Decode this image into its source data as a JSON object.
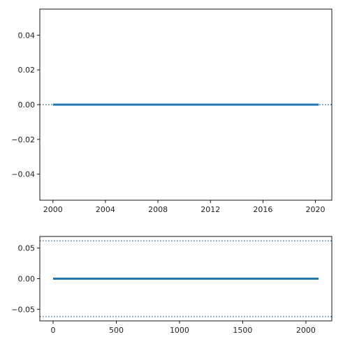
{
  "chart_data": [
    {
      "type": "line",
      "title": "",
      "xlabel": "",
      "ylabel": "",
      "x_axis_type": "date",
      "xlim": [
        "1999-01-01",
        "2021-04-01"
      ],
      "ylim": [
        -0.055,
        0.055
      ],
      "xticks": [
        {
          "value": "2000-01-01",
          "label": "2000"
        },
        {
          "value": "2004-01-01",
          "label": "2004"
        },
        {
          "value": "2008-01-01",
          "label": "2008"
        },
        {
          "value": "2012-01-01",
          "label": "2012"
        },
        {
          "value": "2016-01-01",
          "label": "2016"
        },
        {
          "value": "2020-01-01",
          "label": "2020"
        }
      ],
      "yticks": [
        {
          "value": 0.04,
          "label": "0.04"
        },
        {
          "value": 0.02,
          "label": "0.02"
        },
        {
          "value": 0.0,
          "label": "0.00"
        },
        {
          "value": -0.02,
          "label": "−0.02"
        },
        {
          "value": -0.04,
          "label": "−0.04"
        }
      ],
      "series": [
        {
          "x": [
            "2000-01-01",
            "2020-04-01"
          ],
          "y": [
            0.0,
            0.0
          ],
          "style": "solid",
          "color": "#1f77b4"
        }
      ],
      "reference_lines": [
        {
          "orientation": "horizontal",
          "y": 0.0,
          "style": "dotted",
          "color": "#1f77b4"
        }
      ],
      "grid": false,
      "legend": "none"
    },
    {
      "type": "line",
      "title": "",
      "xlabel": "",
      "ylabel": "",
      "xlim": [
        -105,
        2205
      ],
      "ylim": [
        -0.069,
        0.069
      ],
      "xticks": [
        {
          "value": 0,
          "label": "0"
        },
        {
          "value": 500,
          "label": "500"
        },
        {
          "value": 1000,
          "label": "1000"
        },
        {
          "value": 1500,
          "label": "1500"
        },
        {
          "value": 2000,
          "label": "2000"
        }
      ],
      "yticks": [
        {
          "value": 0.05,
          "label": "0.05"
        },
        {
          "value": 0.0,
          "label": "0.00"
        },
        {
          "value": -0.05,
          "label": "−0.05"
        }
      ],
      "series": [
        {
          "x": [
            0,
            2100
          ],
          "y": [
            0.0,
            0.0
          ],
          "style": "solid",
          "color": "#1f77b4"
        }
      ],
      "reference_lines": [
        {
          "orientation": "horizontal",
          "y": 0.062,
          "style": "dotted",
          "color": "#1f77b4"
        },
        {
          "orientation": "horizontal",
          "y": -0.062,
          "style": "dotted",
          "color": "#1f77b4"
        }
      ],
      "grid": false,
      "legend": "none"
    }
  ]
}
